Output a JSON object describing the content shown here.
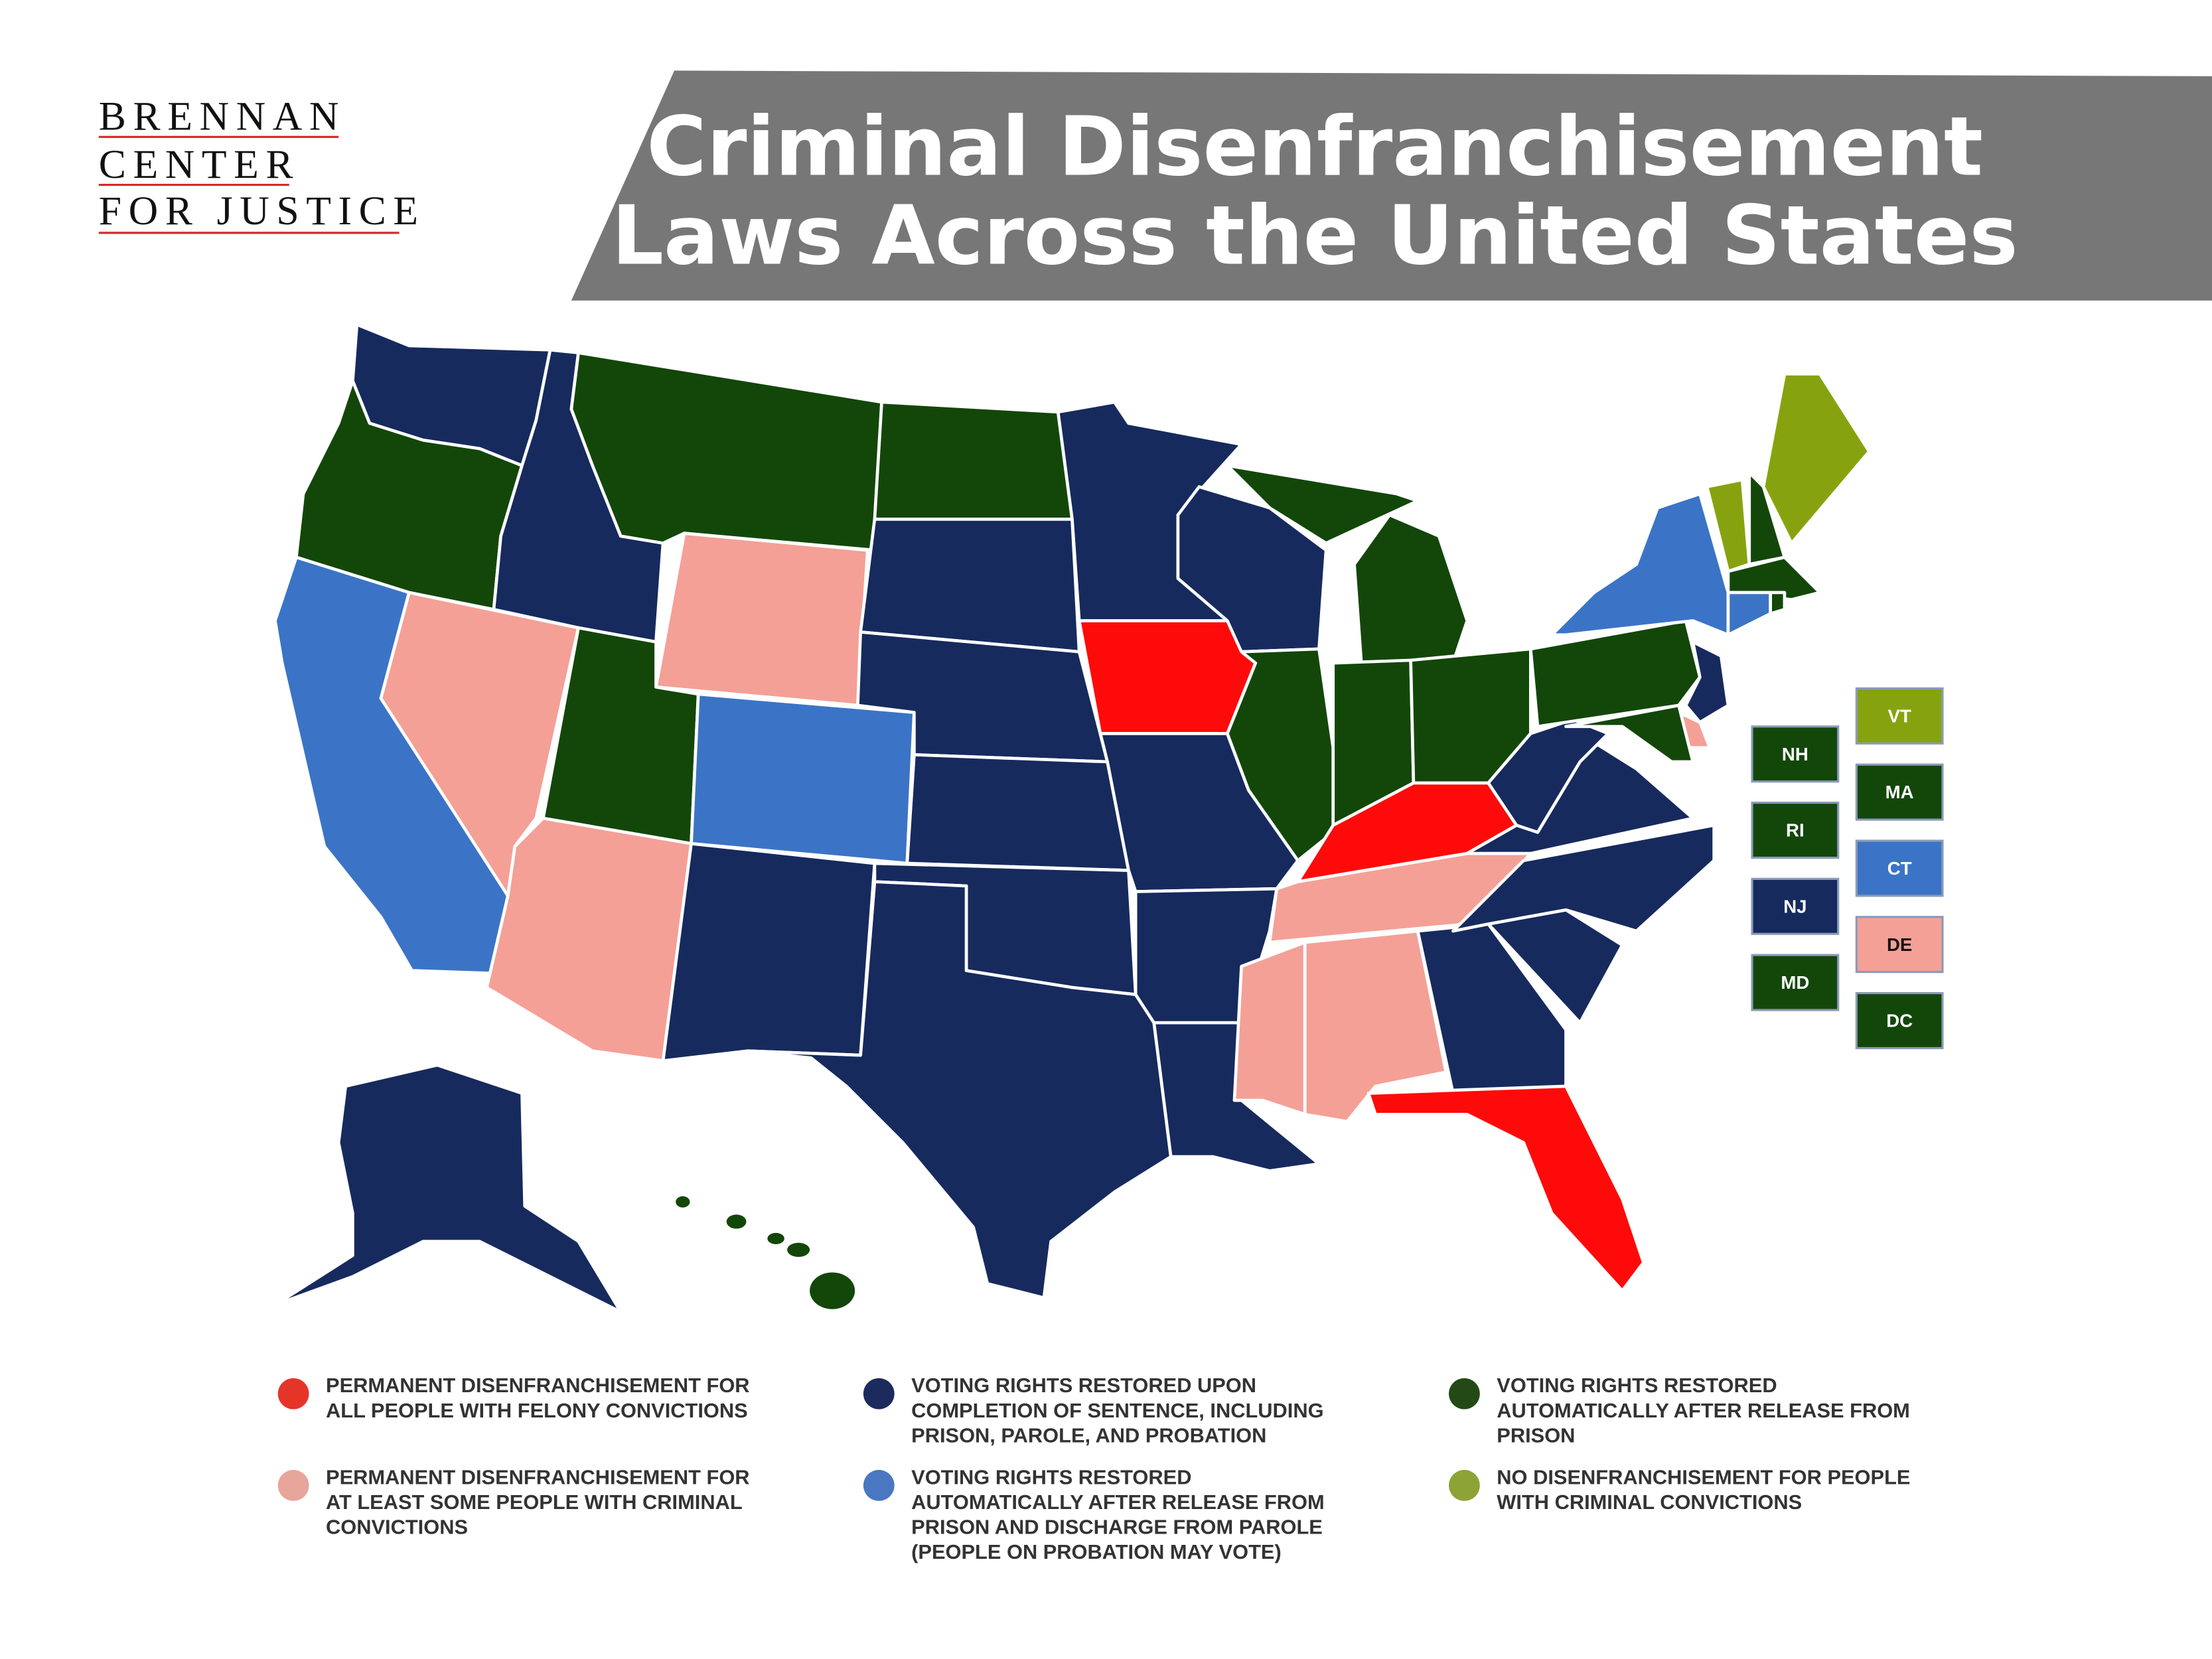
{
  "logo": {
    "lines": [
      "BRENNAN",
      "CENTER",
      "FOR JUSTICE"
    ],
    "underline_color": "#d8282f"
  },
  "title": {
    "lines": [
      "Criminal Disenfranchisement",
      "Laws Across the United States"
    ],
    "banner_color": "#777777"
  },
  "categories": {
    "permanent_all": {
      "color": "#ff0a0a",
      "legend_color": "#e53528",
      "lines": [
        "PERMANENT DISENFRANCHISEMENT FOR",
        "ALL PEOPLE WITH FELONY CONVICTIONS"
      ]
    },
    "permanent_some": {
      "color": "#f4a097",
      "legend_color": "#e8a59b",
      "lines": [
        "PERMANENT DISENFRANCHISEMENT FOR",
        "AT LEAST SOME PEOPLE WITH CRIMINAL",
        "CONVICTIONS"
      ]
    },
    "completion": {
      "color": "#172a5e",
      "legend_color": "#1c2b5e",
      "lines": [
        "VOTING RIGHTS RESTORED UPON",
        "COMPLETION OF SENTENCE, INCLUDING",
        "PRISON, PAROLE, AND PROBATION"
      ]
    },
    "after_parole": {
      "color": "#3b74c6",
      "legend_color": "#4a77c2",
      "lines": [
        "VOTING RIGHTS RESTORED",
        "AUTOMATICALLY AFTER RELEASE FROM",
        "PRISON AND DISCHARGE FROM PAROLE",
        "(PEOPLE ON PROBATION MAY VOTE)"
      ]
    },
    "after_prison": {
      "color": "#13470a",
      "legend_color": "#234a16",
      "lines": [
        "VOTING RIGHTS RESTORED",
        "AUTOMATICALLY AFTER RELEASE FROM",
        "PRISON"
      ]
    },
    "none": {
      "color": "#86a30f",
      "legend_color": "#8ea335",
      "lines": [
        "NO DISENFRANCHISEMENT FOR PEOPLE",
        "WITH CRIMINAL CONVICTIONS"
      ]
    }
  },
  "states": {
    "WA": "completion",
    "OR": "after_prison",
    "CA": "after_parole",
    "NV": "permanent_some",
    "ID": "completion",
    "MT": "after_prison",
    "WY": "permanent_some",
    "UT": "after_prison",
    "AZ": "permanent_some",
    "CO": "after_parole",
    "NM": "completion",
    "ND": "after_prison",
    "SD": "completion",
    "NE": "completion",
    "KS": "completion",
    "OK": "completion",
    "TX": "completion",
    "MN": "completion",
    "IA": "permanent_all",
    "MO": "completion",
    "AR": "completion",
    "LA": "completion",
    "WI": "completion",
    "IL": "after_prison",
    "MI": "after_prison",
    "IN": "after_prison",
    "OH": "after_prison",
    "KY": "permanent_all",
    "TN": "permanent_some",
    "MS": "permanent_some",
    "AL": "permanent_some",
    "GA": "completion",
    "FL": "permanent_all",
    "SC": "completion",
    "NC": "completion",
    "VA": "completion",
    "WV": "completion",
    "PA": "after_prison",
    "NY": "after_parole",
    "NJ": "completion",
    "DE": "permanent_some",
    "MD": "after_prison",
    "VT": "none",
    "NH": "after_prison",
    "ME": "none",
    "MA": "after_prison",
    "CT": "after_parole",
    "RI": "after_prison",
    "AK": "completion",
    "HI": "after_prison"
  },
  "small_state_boxes": [
    {
      "label": "NH",
      "state": "NH"
    },
    {
      "label": "RI",
      "state": "RI"
    },
    {
      "label": "NJ",
      "state": "NJ"
    },
    {
      "label": "MD",
      "state": "MD"
    },
    {
      "label": "VT",
      "state": "VT"
    },
    {
      "label": "MA",
      "state": "MA"
    },
    {
      "label": "CT",
      "state": "CT"
    },
    {
      "label": "DE",
      "state": "DE"
    },
    {
      "label": "DC",
      "state": "DC"
    }
  ],
  "dc_category": "after_prison"
}
